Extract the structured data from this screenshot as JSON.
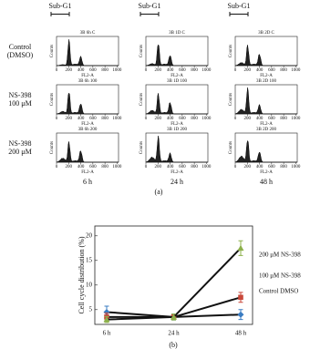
{
  "panel_a": {
    "sub_g1_labels": [
      "Sub-G1",
      "Sub-G1",
      "Sub-G1"
    ],
    "row_labels": [
      [
        "Control",
        "(DMSO)"
      ],
      [
        "NS-398",
        "100 μM"
      ],
      [
        "NS-398",
        "200 μM"
      ]
    ],
    "panel_titles": [
      [
        "3B 6h C",
        "3B 1D C",
        "3B 2D C"
      ],
      [
        "3B 6h 100",
        "3B 1D 100",
        "3B 2D 100"
      ],
      [
        "3B 6h 200",
        "3B 1D 200",
        "3B 2D 200"
      ]
    ],
    "x_label": "FL2-A",
    "y_label": "Counts",
    "xlim": [
      0,
      1024
    ],
    "xticks": [
      0,
      200,
      400,
      600,
      800,
      1000
    ],
    "column_labels": [
      "6 h",
      "24 h",
      "48 h"
    ],
    "caption": "(a)"
  },
  "chart_data": {
    "type": "line",
    "y_label": "Cell cycle distribution (%)",
    "categories": [
      "6 h",
      "24 h",
      "48 h"
    ],
    "ylim": [
      2,
      22
    ],
    "yticks": [
      5,
      10,
      15,
      20
    ],
    "line_color": "#111111",
    "series": [
      {
        "name": "Control DMSO",
        "color": "#3a7cc2",
        "marker": "diamond",
        "values": [
          4.5,
          3.5,
          4
        ],
        "errors": [
          1.2,
          0.6,
          1
        ]
      },
      {
        "name": "100 μM NS-398",
        "color": "#c9483a",
        "marker": "square",
        "values": [
          3.5,
          3.5,
          7.5
        ],
        "errors": [
          0.8,
          0.5,
          1
        ]
      },
      {
        "name": "200 μM NS-398",
        "color": "#8cb04a",
        "marker": "triangle",
        "values": [
          3,
          3.5,
          17.5
        ],
        "errors": [
          0.6,
          0.6,
          1.5
        ]
      }
    ],
    "caption": "(b)"
  }
}
